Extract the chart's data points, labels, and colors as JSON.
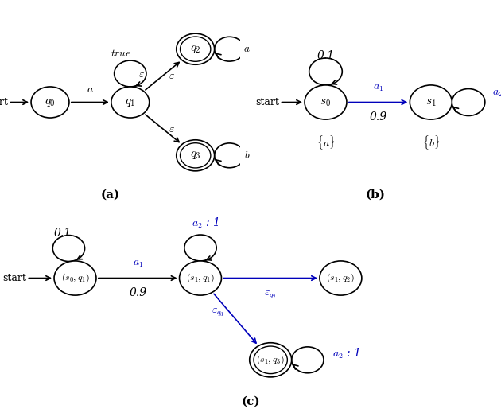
{
  "fig_width": 6.3,
  "fig_height": 5.14,
  "dpi": 100,
  "bg_color": "#ffffff",
  "blue_color": "#0000bb",
  "label_a": "(a)",
  "label_b": "(b)",
  "label_c": "(c)"
}
